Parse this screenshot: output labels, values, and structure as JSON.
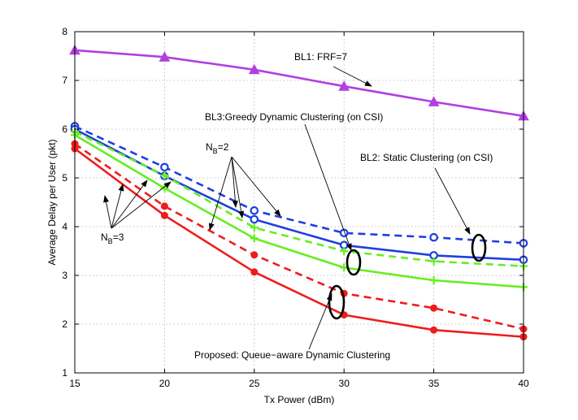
{
  "chart_data": {
    "type": "line",
    "xlabel": "Tx Power (dBm)",
    "ylabel": "Average Delay per User (pkt)",
    "x": [
      15,
      20,
      25,
      30,
      35,
      40
    ],
    "xlim": [
      15,
      40
    ],
    "ylim": [
      1,
      8
    ],
    "xticks": [
      "15",
      "20",
      "25",
      "30",
      "35",
      "40"
    ],
    "yticks": [
      "1",
      "2",
      "3",
      "4",
      "5",
      "6",
      "7",
      "8"
    ],
    "grid": true,
    "series": [
      {
        "name": "BL1: FRF=7",
        "color": "#b040e0",
        "style": "solid",
        "marker": "triangle",
        "values": [
          7.62,
          7.48,
          7.22,
          6.88,
          6.56,
          6.27
        ]
      },
      {
        "name": "BL2: Static Clustering (on CSI), NB=2",
        "color": "#1f3fe0",
        "style": "dashed",
        "marker": "circle-open",
        "values": [
          6.06,
          5.22,
          4.33,
          3.87,
          3.78,
          3.66
        ]
      },
      {
        "name": "BL2: Static Clustering (on CSI), NB=3",
        "color": "#1f3fe0",
        "style": "solid",
        "marker": "circle-open",
        "values": [
          6.0,
          5.04,
          4.15,
          3.62,
          3.41,
          3.32
        ]
      },
      {
        "name": "BL3: Greedy Dynamic Clustering (on CSI), NB=2",
        "color": "#66ee22",
        "style": "dashed",
        "marker": "plus",
        "values": [
          5.95,
          5.05,
          3.98,
          3.5,
          3.29,
          3.19
        ]
      },
      {
        "name": "BL3: Greedy Dynamic Clustering (on CSI), NB=3",
        "color": "#66ee22",
        "style": "solid",
        "marker": "plus",
        "values": [
          5.88,
          4.79,
          3.76,
          3.16,
          2.9,
          2.76
        ]
      },
      {
        "name": "Proposed: Queue-aware Dynamic Clustering, NB=2",
        "color": "#ee1c1c",
        "style": "dashed",
        "marker": "dot",
        "values": [
          5.7,
          4.42,
          3.42,
          2.63,
          2.33,
          1.9
        ]
      },
      {
        "name": "Proposed: Queue-aware Dynamic Clustering, NB=3",
        "color": "#ee1c1c",
        "style": "solid",
        "marker": "dot",
        "values": [
          5.6,
          4.23,
          3.07,
          2.19,
          1.88,
          1.74
        ]
      }
    ],
    "annotations": {
      "bl1": "BL1: FRF=7",
      "bl3": "BL3:Greedy Dynamic Clustering (on CSI)",
      "bl2": "BL2: Static Clustering (on CSI)",
      "proposed": "Proposed: Queue−aware Dynamic Clustering",
      "nb_letter": "N",
      "nb_sub": "B",
      "nb2_value": "=2",
      "nb3_value": "=3"
    }
  }
}
